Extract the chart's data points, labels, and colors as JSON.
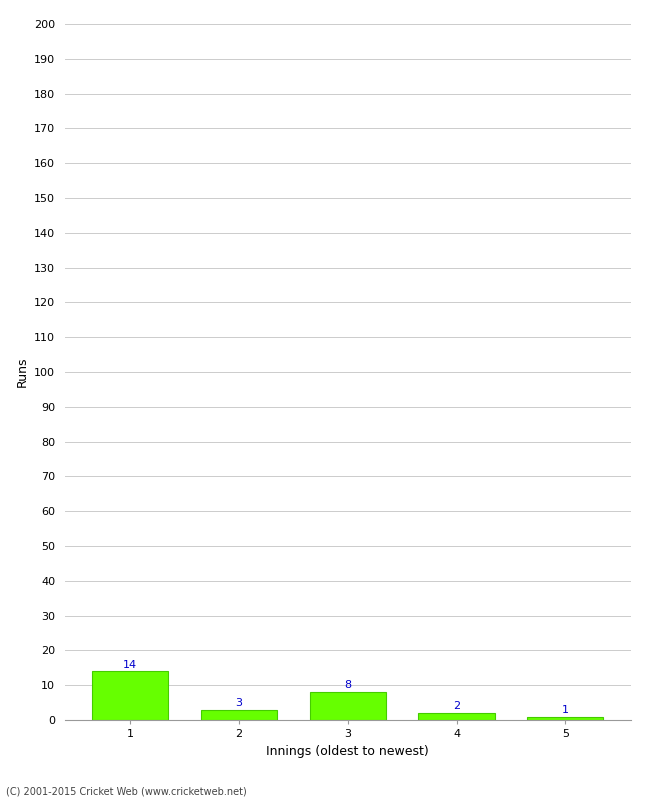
{
  "categories": [
    1,
    2,
    3,
    4,
    5
  ],
  "values": [
    14,
    3,
    8,
    2,
    1
  ],
  "bar_color": "#66ff00",
  "bar_edgecolor": "#44cc00",
  "xlabel": "Innings (oldest to newest)",
  "ylabel": "Runs",
  "ylim": [
    0,
    200
  ],
  "yticks": [
    0,
    10,
    20,
    30,
    40,
    50,
    60,
    70,
    80,
    90,
    100,
    110,
    120,
    130,
    140,
    150,
    160,
    170,
    180,
    190,
    200
  ],
  "label_color": "#0000cc",
  "label_fontsize": 8,
  "xlabel_fontsize": 9,
  "ylabel_fontsize": 9,
  "tick_fontsize": 8,
  "footer": "(C) 2001-2015 Cricket Web (www.cricketweb.net)",
  "background_color": "#ffffff",
  "grid_color": "#cccccc",
  "bar_width": 0.7
}
